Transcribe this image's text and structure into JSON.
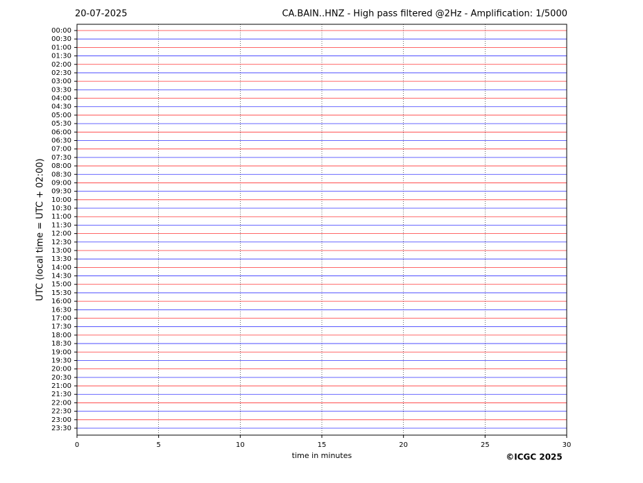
{
  "chart_data": {
    "type": "helicorder",
    "date": "20-07-2025",
    "title": "CA.BAIN..HNZ - High pass filtered @2Hz - Amplification: 1/5000",
    "ylabel": "UTC (local time = UTC + 02:00)",
    "xlabel": "time in minutes",
    "copyright": "©ICGC 2025",
    "categories": [
      "00:00",
      "00:30",
      "01:00",
      "01:30",
      "02:00",
      "02:30",
      "03:00",
      "03:30",
      "04:00",
      "04:30",
      "05:00",
      "05:30",
      "06:00",
      "06:30",
      "07:00",
      "07:30",
      "08:00",
      "08:30",
      "09:00",
      "09:30",
      "10:00",
      "10:30",
      "11:00",
      "11:30",
      "12:00",
      "12:30",
      "13:00",
      "13:30",
      "14:00",
      "14:30",
      "15:00",
      "15:30",
      "16:00",
      "16:30",
      "17:00",
      "17:30",
      "18:00",
      "18:30",
      "19:00",
      "19:30",
      "20:00",
      "20:30",
      "21:00",
      "21:30",
      "22:00",
      "22:30",
      "23:00",
      "23:30"
    ],
    "colors": [
      "#ff0000",
      "#0000ff"
    ],
    "xlim": [
      0,
      30
    ],
    "xticks": [
      0,
      5,
      10,
      15,
      20,
      25,
      30
    ],
    "grid": true
  }
}
